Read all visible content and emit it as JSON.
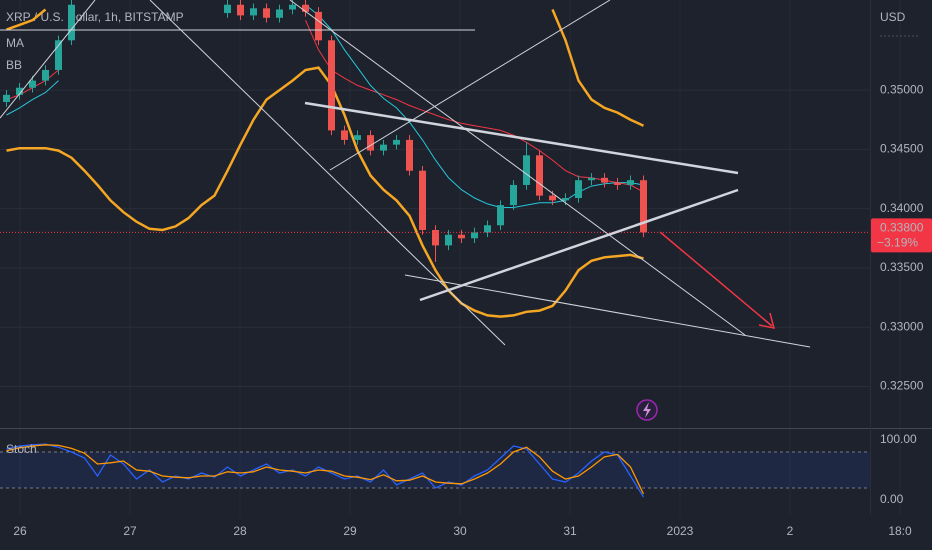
{
  "chart_data": [
    {
      "type": "candlestick",
      "title": "XRP / U.S. Dollar, 1h, BITSTAMP",
      "currency": "USD",
      "up_color": "#26a69a",
      "down_color": "#ef5350",
      "open": [
        0.349,
        0.3496,
        0.3502,
        0.3508,
        0.3517,
        0.3542,
        null,
        null,
        null,
        null,
        null,
        null,
        null,
        null,
        null,
        null,
        null,
        0.3565,
        0.3572,
        0.3563,
        0.3569,
        0.3561,
        0.3568,
        0.3572,
        0.3566,
        0.3542,
        0.3466,
        0.3458,
        0.3462,
        0.3449,
        0.3454,
        0.3458,
        0.3432,
        0.3382,
        0.3369,
        0.3378,
        0.3375,
        0.338,
        0.3386,
        0.3403,
        0.342,
        0.3445,
        0.3411,
        0.3407,
        0.3409,
        0.3424,
        0.3426,
        0.3422,
        0.342,
        0.3424
      ],
      "high": [
        0.35,
        0.3506,
        0.3512,
        0.3521,
        0.3546,
        0.3576,
        null,
        null,
        null,
        null,
        null,
        null,
        null,
        null,
        null,
        null,
        null,
        0.3576,
        0.3576,
        0.3573,
        0.3573,
        0.3572,
        0.3576,
        0.3576,
        0.357,
        0.3546,
        0.347,
        0.3466,
        0.3466,
        0.3458,
        0.3462,
        0.3462,
        0.3436,
        0.3386,
        0.3382,
        0.3382,
        0.3384,
        0.339,
        0.3407,
        0.3424,
        0.3456,
        0.3449,
        0.3415,
        0.3413,
        0.3428,
        0.343,
        0.343,
        0.3426,
        0.3428,
        0.3428
      ],
      "low": [
        0.3486,
        0.3492,
        0.3498,
        0.3504,
        0.3513,
        0.3538,
        null,
        null,
        null,
        null,
        null,
        null,
        null,
        null,
        null,
        null,
        null,
        0.3561,
        0.3559,
        0.3559,
        0.3557,
        0.3557,
        0.3564,
        0.3562,
        0.3538,
        0.3462,
        0.3454,
        0.3454,
        0.3445,
        0.3445,
        0.345,
        0.3428,
        0.3378,
        0.3355,
        0.3365,
        0.3371,
        0.3371,
        0.3376,
        0.3382,
        0.3399,
        0.3416,
        0.3407,
        0.3403,
        0.3403,
        0.3405,
        0.342,
        0.3418,
        0.3416,
        0.3416,
        0.3376
      ],
      "close": [
        0.3496,
        0.3502,
        0.3508,
        0.3517,
        0.3542,
        0.3572,
        null,
        null,
        null,
        null,
        null,
        null,
        null,
        null,
        null,
        null,
        null,
        0.3572,
        0.3563,
        0.3569,
        0.3561,
        0.3568,
        0.3572,
        0.3566,
        0.3542,
        0.3466,
        0.3458,
        0.3462,
        0.3449,
        0.3454,
        0.3458,
        0.3432,
        0.3382,
        0.3369,
        0.3378,
        0.3375,
        0.338,
        0.3386,
        0.3403,
        0.342,
        0.3445,
        0.3411,
        0.3407,
        0.3409,
        0.3424,
        0.3426,
        0.3422,
        0.342,
        0.3424,
        0.338
      ],
      "series": [
        {
          "name": "MA",
          "color": "#f23645",
          "values": [
            0.3492,
            0.3496,
            0.3502,
            0.3508,
            0.3517,
            null,
            null,
            null,
            null,
            null,
            null,
            null,
            null,
            null,
            null,
            null,
            null,
            null,
            null,
            null,
            null,
            null,
            null,
            0.3559,
            0.3534,
            0.3517,
            0.351,
            0.3504,
            0.35,
            0.3496,
            0.3492,
            0.3487,
            0.3483,
            0.3479,
            0.3475,
            0.3472,
            0.347,
            0.3468,
            0.3466,
            0.3462,
            0.3456,
            0.3449,
            0.3441,
            0.3432,
            0.3427,
            0.3426,
            0.3424,
            0.3422,
            0.342,
            0.3414
          ]
        },
        {
          "name": "BB",
          "color": "#26c6da",
          "values": [
            0.3479,
            0.3485,
            0.3492,
            0.3498,
            0.3508,
            null,
            null,
            null,
            null,
            null,
            null,
            null,
            null,
            null,
            null,
            null,
            null,
            null,
            null,
            null,
            null,
            null,
            null,
            0.3572,
            0.3563,
            0.3551,
            0.3534,
            0.3519,
            0.3504,
            0.3493,
            0.3485,
            0.3473,
            0.3458,
            0.3441,
            0.3426,
            0.3416,
            0.3409,
            0.3404,
            0.3401,
            0.3401,
            0.3403,
            0.3405,
            0.3405,
            0.3407,
            0.3414,
            0.3419,
            0.3421,
            0.3422,
            0.3422,
            0.342
          ]
        }
      ],
      "bands": {
        "color": "#f5a623",
        "upper": [
          0.3551,
          0.3555,
          0.3559,
          0.3568,
          null,
          null,
          null,
          null,
          null,
          null,
          null,
          null,
          null,
          null,
          null,
          null,
          null,
          null,
          null,
          null,
          null,
          null,
          null,
          null,
          null,
          null,
          null,
          null,
          null,
          null,
          null,
          null,
          null,
          null,
          null,
          null,
          null,
          null,
          null,
          null,
          null,
          null,
          0.3568,
          0.3542,
          0.3508,
          0.3492,
          0.3485,
          0.3481,
          0.3475,
          0.347
        ],
        "lower": [
          0.3449,
          0.3451,
          0.3451,
          0.3451,
          0.3449,
          0.3443,
          0.3432,
          0.342,
          0.3407,
          0.3397,
          0.3389,
          0.3383,
          0.3382,
          0.3385,
          0.3392,
          0.3403,
          0.3411,
          0.3432,
          0.3454,
          0.3475,
          0.3492,
          0.35,
          0.3508,
          0.3517,
          0.3519,
          0.3504,
          0.3479,
          0.3449,
          0.3428,
          0.3416,
          0.3407,
          0.3394,
          0.3369,
          0.3348,
          0.3331,
          0.332,
          0.3314,
          0.331,
          0.3309,
          0.331,
          0.3313,
          0.3314,
          0.3318,
          0.3331,
          0.3348,
          0.3356,
          0.3359,
          0.336,
          0.3361,
          0.3358
        ]
      },
      "last_price": {
        "value": 0.338,
        "label": "0.33800",
        "change": -3.19,
        "change_label": "−3.19%",
        "color": "#f23645"
      },
      "ylim": [
        0.3215,
        0.3576
      ],
      "yticks": [
        {
          "value": 0.35,
          "label": "0.35000"
        },
        {
          "value": 0.345,
          "label": "0.34500"
        },
        {
          "value": 0.34,
          "label": "0.34000"
        },
        {
          "value": 0.335,
          "label": "0.33500"
        },
        {
          "value": 0.33,
          "label": "0.33000"
        },
        {
          "value": 0.325,
          "label": "0.32500"
        }
      ],
      "xtick_labels": [
        "26",
        "27",
        "28",
        "29",
        "30",
        "31",
        "2023",
        "2",
        "18:0"
      ],
      "grid": true
    },
    {
      "type": "line",
      "title": "Stoch",
      "series": [
        {
          "color": "#2962ff",
          "values": [
            85,
            90,
            92,
            93,
            88,
            80,
            70,
            40,
            75,
            60,
            35,
            50,
            30,
            40,
            35,
            45,
            38,
            55,
            40,
            50,
            60,
            45,
            50,
            40,
            55,
            45,
            35,
            40,
            30,
            50,
            25,
            35,
            45,
            20,
            30,
            25,
            40,
            50,
            70,
            90,
            85,
            60,
            35,
            30,
            45,
            65,
            80,
            75,
            40,
            5
          ]
        },
        {
          "color": "#ff9800",
          "values": [
            82,
            87,
            90,
            92,
            91,
            86,
            78,
            60,
            62,
            65,
            50,
            48,
            40,
            38,
            37,
            40,
            40,
            47,
            45,
            47,
            55,
            50,
            48,
            45,
            50,
            48,
            40,
            38,
            34,
            42,
            32,
            33,
            40,
            30,
            28,
            27,
            35,
            45,
            60,
            80,
            88,
            72,
            48,
            35,
            40,
            55,
            72,
            76,
            55,
            10
          ]
        }
      ],
      "bands": [
        80,
        20
      ],
      "ylim": [
        -25,
        116.7
      ],
      "yticks": [
        {
          "value": 100,
          "label": "100.00"
        },
        {
          "value": 0,
          "label": "0.00"
        }
      ]
    }
  ]
}
